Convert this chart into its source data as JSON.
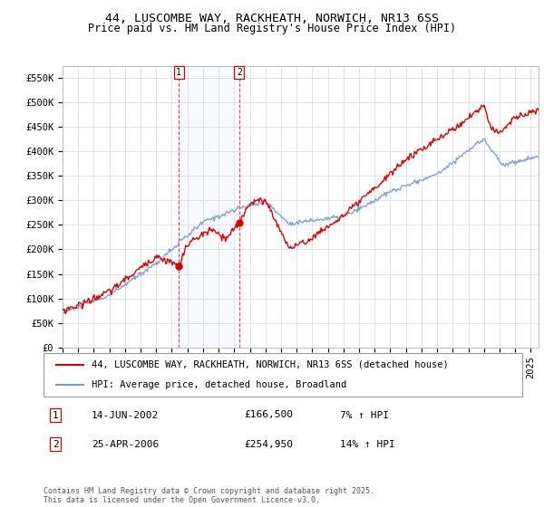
{
  "title": "44, LUSCOMBE WAY, RACKHEATH, NORWICH, NR13 6SS",
  "subtitle": "Price paid vs. HM Land Registry's House Price Index (HPI)",
  "ylabel_ticks": [
    "£0",
    "£50K",
    "£100K",
    "£150K",
    "£200K",
    "£250K",
    "£300K",
    "£350K",
    "£400K",
    "£450K",
    "£500K",
    "£550K"
  ],
  "ytick_values": [
    0,
    50000,
    100000,
    150000,
    200000,
    250000,
    300000,
    350000,
    400000,
    450000,
    500000,
    550000
  ],
  "ylim": [
    0,
    575000
  ],
  "xlim_start": 1995.0,
  "xlim_end": 2025.5,
  "red_line_color": "#dd0000",
  "blue_line_color": "#7799cc",
  "grid_color": "#dddddd",
  "bg_color": "#ffffff",
  "marker1_x": 2002.45,
  "marker1_y": 166500,
  "marker2_x": 2006.32,
  "marker2_y": 254950,
  "marker1_label": "1",
  "marker2_label": "2",
  "legend_entry1": "44, LUSCOMBE WAY, RACKHEATH, NORWICH, NR13 6SS (detached house)",
  "legend_entry2": "HPI: Average price, detached house, Broadland",
  "table_row1": [
    "1",
    "14-JUN-2002",
    "£166,500",
    "7% ↑ HPI"
  ],
  "table_row2": [
    "2",
    "25-APR-2006",
    "£254,950",
    "14% ↑ HPI"
  ],
  "footer": "Contains HM Land Registry data © Crown copyright and database right 2025.\nThis data is licensed under the Open Government Licence v3.0.",
  "title_fontsize": 9.5,
  "subtitle_fontsize": 8.5,
  "tick_fontsize": 7.5,
  "legend_fontsize": 7.5,
  "table_fontsize": 8,
  "footer_fontsize": 6
}
